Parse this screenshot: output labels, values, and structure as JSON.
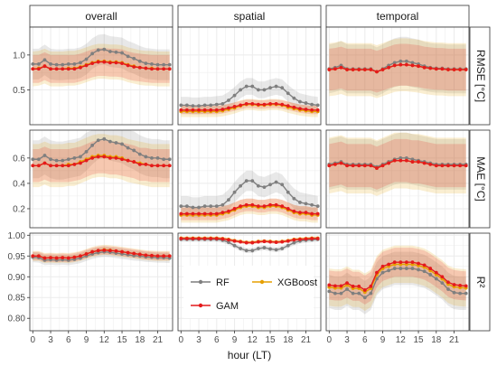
{
  "chart_data": {
    "type": "line",
    "xlabel": "hour (LT)",
    "columns": [
      "overall",
      "spatial",
      "temporal"
    ],
    "rows": [
      {
        "key": "rmse",
        "label": "RMSE [°C]",
        "ylim": [
          0.0,
          1.4
        ],
        "ticks": [
          0.5,
          1.0
        ],
        "tick_labels": [
          "0.5",
          "1.0"
        ]
      },
      {
        "key": "mae",
        "label": "MAE [°C]",
        "ylim": [
          0.05,
          0.82
        ],
        "ticks": [
          0.2,
          0.4,
          0.6
        ],
        "tick_labels": [
          "0.2",
          "0.4",
          "0.6"
        ]
      },
      {
        "key": "r2",
        "label": "R²",
        "ylim": [
          0.77,
          1.005
        ],
        "ticks": [
          0.8,
          0.85,
          0.9,
          0.95,
          1.0
        ],
        "tick_labels": [
          "0.80",
          "0.85",
          "0.90",
          "0.95",
          "1.00"
        ]
      }
    ],
    "x": [
      0,
      1,
      2,
      3,
      4,
      5,
      6,
      7,
      8,
      9,
      10,
      11,
      12,
      13,
      14,
      15,
      16,
      17,
      18,
      19,
      20,
      21,
      22,
      23
    ],
    "xticks": [
      0,
      3,
      6,
      9,
      12,
      15,
      18,
      21
    ],
    "legend": [
      {
        "name": "RF",
        "color": "#7f7f7f"
      },
      {
        "name": "XGBoost",
        "color": "#e69f00"
      },
      {
        "name": "GAM",
        "color": "#e41a1c"
      }
    ],
    "legend_position": "inside bottom panel of spatial column",
    "grid": true,
    "panel_background": "#ffffff",
    "grid_color": "#ebebeb",
    "series": {
      "overall": {
        "rmse": {
          "RF": {
            "values": [
              0.87,
              0.87,
              0.93,
              0.87,
              0.86,
              0.86,
              0.87,
              0.87,
              0.89,
              0.94,
              1.02,
              1.07,
              1.08,
              1.05,
              1.04,
              1.03,
              0.98,
              0.95,
              0.91,
              0.88,
              0.87,
              0.86,
              0.86,
              0.86
            ],
            "band": 0.22
          },
          "XGBoost": {
            "values": [
              0.8,
              0.81,
              0.84,
              0.8,
              0.8,
              0.8,
              0.81,
              0.81,
              0.83,
              0.86,
              0.89,
              0.91,
              0.91,
              0.9,
              0.9,
              0.89,
              0.86,
              0.84,
              0.82,
              0.81,
              0.81,
              0.8,
              0.8,
              0.8
            ],
            "band": 0.25
          },
          "GAM": {
            "values": [
              0.8,
              0.8,
              0.84,
              0.8,
              0.8,
              0.8,
              0.8,
              0.8,
              0.82,
              0.85,
              0.88,
              0.9,
              0.9,
              0.89,
              0.89,
              0.88,
              0.85,
              0.83,
              0.82,
              0.81,
              0.8,
              0.8,
              0.8,
              0.8
            ],
            "band": 0.2
          }
        },
        "mae": {
          "RF": {
            "values": [
              0.59,
              0.59,
              0.62,
              0.59,
              0.58,
              0.58,
              0.59,
              0.6,
              0.61,
              0.65,
              0.7,
              0.74,
              0.75,
              0.73,
              0.72,
              0.71,
              0.68,
              0.66,
              0.63,
              0.61,
              0.6,
              0.6,
              0.59,
              0.59
            ],
            "band": 0.15
          },
          "XGBoost": {
            "values": [
              0.54,
              0.54,
              0.56,
              0.54,
              0.54,
              0.54,
              0.55,
              0.55,
              0.57,
              0.59,
              0.61,
              0.62,
              0.62,
              0.61,
              0.61,
              0.6,
              0.58,
              0.57,
              0.56,
              0.55,
              0.54,
              0.54,
              0.54,
              0.54
            ],
            "band": 0.17
          },
          "GAM": {
            "values": [
              0.54,
              0.54,
              0.56,
              0.54,
              0.54,
              0.54,
              0.54,
              0.55,
              0.56,
              0.58,
              0.6,
              0.61,
              0.61,
              0.6,
              0.6,
              0.59,
              0.58,
              0.57,
              0.55,
              0.55,
              0.54,
              0.54,
              0.54,
              0.54
            ],
            "band": 0.13
          }
        },
        "r2": {
          "RF": {
            "values": [
              0.947,
              0.946,
              0.94,
              0.941,
              0.94,
              0.941,
              0.94,
              0.942,
              0.945,
              0.95,
              0.955,
              0.958,
              0.96,
              0.959,
              0.957,
              0.955,
              0.953,
              0.951,
              0.95,
              0.948,
              0.947,
              0.946,
              0.946,
              0.945
            ],
            "band": 0.012
          },
          "XGBoost": {
            "values": [
              0.95,
              0.95,
              0.945,
              0.946,
              0.945,
              0.946,
              0.945,
              0.947,
              0.95,
              0.955,
              0.96,
              0.963,
              0.965,
              0.964,
              0.962,
              0.96,
              0.958,
              0.956,
              0.954,
              0.952,
              0.951,
              0.95,
              0.95,
              0.95
            ],
            "band": 0.012
          },
          "GAM": {
            "values": [
              0.95,
              0.95,
              0.945,
              0.946,
              0.945,
              0.946,
              0.945,
              0.947,
              0.95,
              0.955,
              0.96,
              0.963,
              0.964,
              0.963,
              0.962,
              0.96,
              0.958,
              0.956,
              0.954,
              0.952,
              0.951,
              0.95,
              0.95,
              0.95
            ],
            "band": 0.01
          }
        }
      },
      "spatial": {
        "rmse": {
          "RF": {
            "values": [
              0.28,
              0.28,
              0.27,
              0.27,
              0.28,
              0.28,
              0.29,
              0.3,
              0.35,
              0.42,
              0.5,
              0.55,
              0.55,
              0.5,
              0.5,
              0.53,
              0.55,
              0.53,
              0.45,
              0.38,
              0.33,
              0.31,
              0.29,
              0.28
            ],
            "band": 0.12
          },
          "XGBoost": {
            "values": [
              0.19,
              0.19,
              0.19,
              0.19,
              0.19,
              0.19,
              0.19,
              0.2,
              0.22,
              0.24,
              0.27,
              0.29,
              0.29,
              0.28,
              0.28,
              0.29,
              0.29,
              0.28,
              0.25,
              0.23,
              0.21,
              0.2,
              0.19,
              0.19
            ],
            "band": 0.08
          },
          "GAM": {
            "values": [
              0.21,
              0.21,
              0.21,
              0.21,
              0.21,
              0.21,
              0.21,
              0.22,
              0.24,
              0.26,
              0.28,
              0.3,
              0.3,
              0.29,
              0.29,
              0.3,
              0.3,
              0.29,
              0.27,
              0.25,
              0.23,
              0.22,
              0.21,
              0.21
            ],
            "band": 0.06
          }
        },
        "mae": {
          "RF": {
            "values": [
              0.22,
              0.22,
              0.21,
              0.21,
              0.22,
              0.22,
              0.22,
              0.23,
              0.27,
              0.33,
              0.38,
              0.42,
              0.42,
              0.38,
              0.37,
              0.39,
              0.41,
              0.39,
              0.33,
              0.28,
              0.25,
              0.24,
              0.23,
              0.22
            ],
            "band": 0.08
          },
          "XGBoost": {
            "values": [
              0.15,
              0.15,
              0.15,
              0.15,
              0.15,
              0.15,
              0.15,
              0.16,
              0.17,
              0.19,
              0.21,
              0.22,
              0.22,
              0.21,
              0.21,
              0.22,
              0.22,
              0.21,
              0.19,
              0.17,
              0.16,
              0.16,
              0.15,
              0.15
            ],
            "band": 0.06
          },
          "GAM": {
            "values": [
              0.16,
              0.16,
              0.16,
              0.16,
              0.16,
              0.16,
              0.16,
              0.17,
              0.18,
              0.2,
              0.22,
              0.23,
              0.23,
              0.22,
              0.22,
              0.23,
              0.23,
              0.22,
              0.2,
              0.18,
              0.17,
              0.17,
              0.16,
              0.16
            ],
            "band": 0.05
          }
        },
        "r2": {
          "RF": {
            "values": [
              0.99,
              0.99,
              0.99,
              0.99,
              0.99,
              0.99,
              0.99,
              0.988,
              0.983,
              0.975,
              0.968,
              0.963,
              0.963,
              0.968,
              0.97,
              0.967,
              0.965,
              0.968,
              0.975,
              0.982,
              0.986,
              0.988,
              0.989,
              0.99
            ],
            "band": 0.006
          },
          "XGBoost": {
            "values": [
              0.993,
              0.993,
              0.993,
              0.993,
              0.993,
              0.993,
              0.993,
              0.992,
              0.99,
              0.987,
              0.985,
              0.983,
              0.983,
              0.985,
              0.986,
              0.985,
              0.984,
              0.985,
              0.987,
              0.99,
              0.991,
              0.992,
              0.993,
              0.993
            ],
            "band": 0.004
          },
          "GAM": {
            "values": [
              0.992,
              0.992,
              0.992,
              0.992,
              0.992,
              0.992,
              0.992,
              0.991,
              0.989,
              0.986,
              0.984,
              0.982,
              0.982,
              0.984,
              0.985,
              0.984,
              0.983,
              0.984,
              0.986,
              0.989,
              0.99,
              0.991,
              0.992,
              0.992
            ],
            "band": 0.004
          }
        }
      },
      "temporal": {
        "rmse": {
          "RF": {
            "values": [
              0.8,
              0.82,
              0.85,
              0.8,
              0.8,
              0.8,
              0.8,
              0.8,
              0.76,
              0.8,
              0.85,
              0.89,
              0.91,
              0.91,
              0.89,
              0.87,
              0.84,
              0.82,
              0.81,
              0.81,
              0.8,
              0.8,
              0.8,
              0.8
            ],
            "band": 0.35
          },
          "XGBoost": {
            "values": [
              0.79,
              0.8,
              0.82,
              0.79,
              0.79,
              0.79,
              0.79,
              0.79,
              0.76,
              0.79,
              0.82,
              0.85,
              0.86,
              0.86,
              0.85,
              0.84,
              0.82,
              0.81,
              0.8,
              0.8,
              0.79,
              0.79,
              0.79,
              0.79
            ],
            "band": 0.38
          },
          "GAM": {
            "values": [
              0.79,
              0.8,
              0.82,
              0.79,
              0.79,
              0.79,
              0.79,
              0.79,
              0.76,
              0.79,
              0.82,
              0.85,
              0.86,
              0.86,
              0.85,
              0.84,
              0.82,
              0.81,
              0.8,
              0.8,
              0.79,
              0.79,
              0.79,
              0.79
            ],
            "band": 0.3
          }
        },
        "mae": {
          "RF": {
            "values": [
              0.55,
              0.56,
              0.57,
              0.55,
              0.55,
              0.55,
              0.55,
              0.55,
              0.53,
              0.55,
              0.57,
              0.59,
              0.6,
              0.6,
              0.59,
              0.58,
              0.57,
              0.56,
              0.55,
              0.55,
              0.55,
              0.55,
              0.55,
              0.55
            ],
            "band": 0.2
          },
          "XGBoost": {
            "values": [
              0.54,
              0.55,
              0.56,
              0.54,
              0.54,
              0.54,
              0.54,
              0.54,
              0.52,
              0.54,
              0.56,
              0.58,
              0.58,
              0.58,
              0.57,
              0.57,
              0.56,
              0.55,
              0.54,
              0.54,
              0.54,
              0.54,
              0.54,
              0.54
            ],
            "band": 0.22
          },
          "GAM": {
            "values": [
              0.54,
              0.55,
              0.56,
              0.54,
              0.54,
              0.54,
              0.54,
              0.54,
              0.52,
              0.54,
              0.56,
              0.58,
              0.58,
              0.58,
              0.57,
              0.57,
              0.56,
              0.55,
              0.54,
              0.54,
              0.54,
              0.54,
              0.54,
              0.54
            ],
            "band": 0.17
          }
        },
        "r2": {
          "RF": {
            "values": [
              0.865,
              0.86,
              0.86,
              0.87,
              0.86,
              0.86,
              0.85,
              0.86,
              0.895,
              0.91,
              0.915,
              0.92,
              0.92,
              0.92,
              0.92,
              0.917,
              0.913,
              0.905,
              0.895,
              0.885,
              0.87,
              0.862,
              0.86,
              0.86
            ],
            "band": 0.04
          },
          "XGBoost": {
            "values": [
              0.875,
              0.873,
              0.873,
              0.88,
              0.872,
              0.872,
              0.863,
              0.872,
              0.905,
              0.92,
              0.925,
              0.93,
              0.93,
              0.93,
              0.93,
              0.927,
              0.923,
              0.915,
              0.905,
              0.895,
              0.882,
              0.876,
              0.874,
              0.873
            ],
            "band": 0.045
          },
          "GAM": {
            "values": [
              0.88,
              0.878,
              0.878,
              0.885,
              0.877,
              0.877,
              0.868,
              0.877,
              0.91,
              0.925,
              0.93,
              0.935,
              0.935,
              0.935,
              0.935,
              0.932,
              0.928,
              0.92,
              0.91,
              0.9,
              0.887,
              0.881,
              0.879,
              0.878
            ],
            "band": 0.035
          }
        }
      }
    }
  }
}
